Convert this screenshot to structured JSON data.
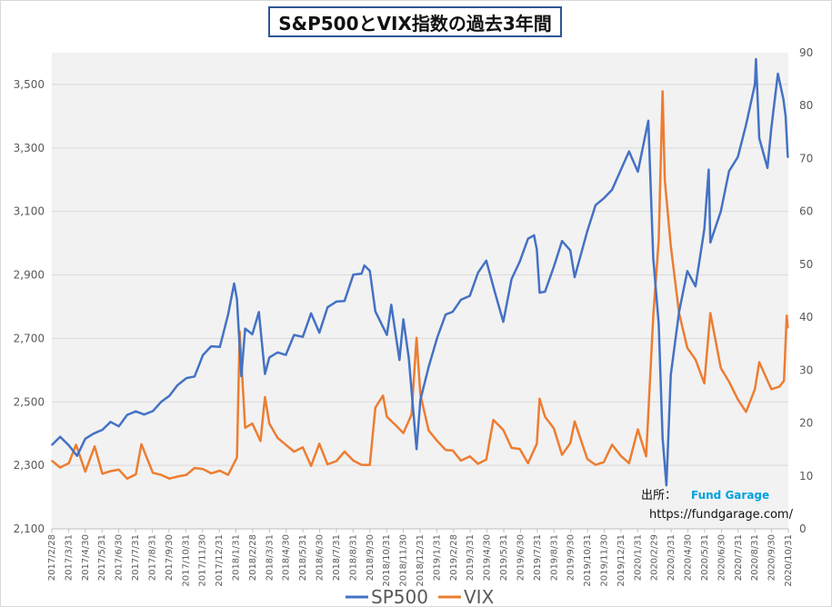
{
  "chart_data": {
    "type": "line",
    "title": "S&P500とVIX指数の過去3年間",
    "x_tick_labels": [
      "2017/2/28",
      "2017/3/31",
      "2017/4/30",
      "2017/5/31",
      "2017/6/30",
      "2017/7/31",
      "2017/8/31",
      "2017/9/30",
      "2017/10/31",
      "2017/11/30",
      "2017/12/31",
      "2018/1/31",
      "2018/2/28",
      "2018/3/31",
      "2018/4/30",
      "2018/5/31",
      "2018/6/30",
      "2018/7/31",
      "2018/8/31",
      "2018/9/30",
      "2018/10/31",
      "2018/11/30",
      "2018/12/31",
      "2019/1/31",
      "2019/2/28",
      "2019/3/31",
      "2019/4/30",
      "2019/5/31",
      "2019/6/30",
      "2019/7/31",
      "2019/8/31",
      "2019/9/30",
      "2019/10/31",
      "2019/11/30",
      "2019/12/31",
      "2020/1/31",
      "2020/2/29",
      "2020/3/31",
      "2020/4/30",
      "2020/5/31",
      "2020/6/30",
      "2020/7/31",
      "2020/8/31",
      "2020/9/30",
      "2020/10/31"
    ],
    "y_left": {
      "ylim": [
        2100,
        3600
      ],
      "ticks": [
        "2,100",
        "2,300",
        "2,500",
        "2,700",
        "2,900",
        "3,100",
        "3,300",
        "3,500"
      ]
    },
    "y_right": {
      "ylim": [
        0,
        90
      ],
      "ticks": [
        "0",
        "10",
        "20",
        "30",
        "40",
        "50",
        "60",
        "70",
        "80",
        "90"
      ]
    },
    "grid": "horizontal",
    "legend": "bottom",
    "series": [
      {
        "name": "SP500",
        "axis": "left",
        "color": "#4472c4",
        "points": [
          [
            "2017-02-28",
            2364
          ],
          [
            "2017-03-15",
            2390
          ],
          [
            "2017-03-31",
            2363
          ],
          [
            "2017-04-15",
            2330
          ],
          [
            "2017-04-30",
            2384
          ],
          [
            "2017-05-15",
            2400
          ],
          [
            "2017-05-31",
            2412
          ],
          [
            "2017-06-15",
            2437
          ],
          [
            "2017-06-30",
            2423
          ],
          [
            "2017-07-15",
            2459
          ],
          [
            "2017-07-31",
            2470
          ],
          [
            "2017-08-15",
            2460
          ],
          [
            "2017-08-31",
            2471
          ],
          [
            "2017-09-15",
            2500
          ],
          [
            "2017-09-30",
            2519
          ],
          [
            "2017-10-15",
            2553
          ],
          [
            "2017-10-31",
            2575
          ],
          [
            "2017-11-15",
            2580
          ],
          [
            "2017-11-30",
            2647
          ],
          [
            "2017-12-15",
            2675
          ],
          [
            "2017-12-31",
            2673
          ],
          [
            "2018-01-15",
            2776
          ],
          [
            "2018-01-26",
            2873
          ],
          [
            "2018-01-31",
            2823
          ],
          [
            "2018-02-08",
            2581
          ],
          [
            "2018-02-15",
            2731
          ],
          [
            "2018-02-28",
            2713
          ],
          [
            "2018-03-12",
            2783
          ],
          [
            "2018-03-23",
            2588
          ],
          [
            "2018-03-31",
            2640
          ],
          [
            "2018-04-15",
            2656
          ],
          [
            "2018-04-30",
            2648
          ],
          [
            "2018-05-15",
            2711
          ],
          [
            "2018-05-31",
            2705
          ],
          [
            "2018-06-15",
            2779
          ],
          [
            "2018-06-30",
            2718
          ],
          [
            "2018-07-15",
            2798
          ],
          [
            "2018-07-31",
            2816
          ],
          [
            "2018-08-15",
            2818
          ],
          [
            "2018-08-31",
            2901
          ],
          [
            "2018-09-15",
            2904
          ],
          [
            "2018-09-20",
            2930
          ],
          [
            "2018-09-30",
            2913
          ],
          [
            "2018-10-10",
            2785
          ],
          [
            "2018-10-31",
            2711
          ],
          [
            "2018-11-08",
            2806
          ],
          [
            "2018-11-23",
            2632
          ],
          [
            "2018-11-30",
            2760
          ],
          [
            "2018-12-10",
            2637
          ],
          [
            "2018-12-24",
            2351
          ],
          [
            "2018-12-31",
            2506
          ],
          [
            "2019-01-15",
            2610
          ],
          [
            "2019-01-31",
            2704
          ],
          [
            "2019-02-15",
            2775
          ],
          [
            "2019-02-28",
            2784
          ],
          [
            "2019-03-15",
            2822
          ],
          [
            "2019-03-31",
            2834
          ],
          [
            "2019-04-15",
            2907
          ],
          [
            "2019-04-30",
            2945
          ],
          [
            "2019-05-15",
            2850
          ],
          [
            "2019-05-31",
            2752
          ],
          [
            "2019-06-15",
            2887
          ],
          [
            "2019-06-30",
            2942
          ],
          [
            "2019-07-15",
            3014
          ],
          [
            "2019-07-26",
            3025
          ],
          [
            "2019-07-31",
            2980
          ],
          [
            "2019-08-05",
            2844
          ],
          [
            "2019-08-15",
            2847
          ],
          [
            "2019-08-31",
            2926
          ],
          [
            "2019-09-15",
            3007
          ],
          [
            "2019-09-30",
            2977
          ],
          [
            "2019-10-08",
            2893
          ],
          [
            "2019-10-31",
            3038
          ],
          [
            "2019-11-15",
            3120
          ],
          [
            "2019-11-30",
            3141
          ],
          [
            "2019-12-15",
            3168
          ],
          [
            "2019-12-31",
            3231
          ],
          [
            "2020-01-15",
            3289
          ],
          [
            "2020-01-31",
            3225
          ],
          [
            "2020-02-19",
            3386
          ],
          [
            "2020-02-28",
            2954
          ],
          [
            "2020-03-09",
            2747
          ],
          [
            "2020-03-16",
            2386
          ],
          [
            "2020-03-23",
            2237
          ],
          [
            "2020-03-31",
            2585
          ],
          [
            "2020-04-15",
            2783
          ],
          [
            "2020-04-30",
            2912
          ],
          [
            "2020-05-15",
            2864
          ],
          [
            "2020-05-31",
            3044
          ],
          [
            "2020-06-08",
            3232
          ],
          [
            "2020-06-11",
            3002
          ],
          [
            "2020-06-30",
            3100
          ],
          [
            "2020-07-15",
            3227
          ],
          [
            "2020-07-31",
            3271
          ],
          [
            "2020-08-15",
            3373
          ],
          [
            "2020-08-31",
            3500
          ],
          [
            "2020-09-02",
            3580
          ],
          [
            "2020-09-08",
            3331
          ],
          [
            "2020-09-23",
            3237
          ],
          [
            "2020-09-30",
            3363
          ],
          [
            "2020-10-12",
            3534
          ],
          [
            "2020-10-22",
            3453
          ],
          [
            "2020-10-26",
            3400
          ],
          [
            "2020-10-30",
            3270
          ]
        ]
      },
      {
        "name": "VIX",
        "axis": "right",
        "color": "#ed7d31",
        "points": [
          [
            "2017-02-28",
            12.9
          ],
          [
            "2017-03-15",
            11.6
          ],
          [
            "2017-03-31",
            12.4
          ],
          [
            "2017-04-13",
            15.9
          ],
          [
            "2017-04-30",
            10.8
          ],
          [
            "2017-05-17",
            15.6
          ],
          [
            "2017-05-31",
            10.4
          ],
          [
            "2017-06-15",
            10.9
          ],
          [
            "2017-06-30",
            11.2
          ],
          [
            "2017-07-15",
            9.5
          ],
          [
            "2017-07-31",
            10.3
          ],
          [
            "2017-08-10",
            16.0
          ],
          [
            "2017-08-31",
            10.6
          ],
          [
            "2017-09-15",
            10.2
          ],
          [
            "2017-09-30",
            9.5
          ],
          [
            "2017-10-15",
            9.9
          ],
          [
            "2017-10-31",
            10.2
          ],
          [
            "2017-11-15",
            11.5
          ],
          [
            "2017-11-30",
            11.3
          ],
          [
            "2017-12-15",
            10.5
          ],
          [
            "2017-12-31",
            11.0
          ],
          [
            "2018-01-15",
            10.2
          ],
          [
            "2018-01-31",
            13.5
          ],
          [
            "2018-02-05",
            37.3
          ],
          [
            "2018-02-15",
            19.1
          ],
          [
            "2018-02-28",
            19.9
          ],
          [
            "2018-03-15",
            16.6
          ],
          [
            "2018-03-23",
            24.9
          ],
          [
            "2018-03-31",
            19.9
          ],
          [
            "2018-04-15",
            17.2
          ],
          [
            "2018-04-30",
            15.9
          ],
          [
            "2018-05-15",
            14.6
          ],
          [
            "2018-05-31",
            15.4
          ],
          [
            "2018-06-15",
            11.9
          ],
          [
            "2018-06-30",
            16.1
          ],
          [
            "2018-07-15",
            12.2
          ],
          [
            "2018-07-31",
            12.8
          ],
          [
            "2018-08-15",
            14.6
          ],
          [
            "2018-08-31",
            12.9
          ],
          [
            "2018-09-15",
            12.1
          ],
          [
            "2018-09-30",
            12.1
          ],
          [
            "2018-10-10",
            22.9
          ],
          [
            "2018-10-24",
            25.2
          ],
          [
            "2018-10-31",
            21.2
          ],
          [
            "2018-11-15",
            19.7
          ],
          [
            "2018-11-30",
            18.1
          ],
          [
            "2018-12-15",
            21.6
          ],
          [
            "2018-12-24",
            36.1
          ],
          [
            "2018-12-31",
            25.4
          ],
          [
            "2019-01-15",
            18.6
          ],
          [
            "2019-01-31",
            16.6
          ],
          [
            "2019-02-15",
            14.9
          ],
          [
            "2019-02-28",
            14.8
          ],
          [
            "2019-03-15",
            12.9
          ],
          [
            "2019-03-31",
            13.7
          ],
          [
            "2019-04-15",
            12.3
          ],
          [
            "2019-04-30",
            13.1
          ],
          [
            "2019-05-13",
            20.6
          ],
          [
            "2019-05-31",
            18.7
          ],
          [
            "2019-06-15",
            15.3
          ],
          [
            "2019-06-30",
            15.1
          ],
          [
            "2019-07-15",
            12.4
          ],
          [
            "2019-07-31",
            16.1
          ],
          [
            "2019-08-05",
            24.6
          ],
          [
            "2019-08-15",
            21.2
          ],
          [
            "2019-08-31",
            19.0
          ],
          [
            "2019-09-15",
            14.0
          ],
          [
            "2019-09-30",
            16.2
          ],
          [
            "2019-10-08",
            20.3
          ],
          [
            "2019-10-31",
            13.2
          ],
          [
            "2019-11-15",
            12.1
          ],
          [
            "2019-11-30",
            12.6
          ],
          [
            "2019-12-15",
            15.9
          ],
          [
            "2019-12-31",
            13.8
          ],
          [
            "2020-01-15",
            12.4
          ],
          [
            "2020-01-31",
            18.8
          ],
          [
            "2020-02-15",
            13.7
          ],
          [
            "2020-02-28",
            40.1
          ],
          [
            "2020-03-09",
            54.5
          ],
          [
            "2020-03-16",
            82.7
          ],
          [
            "2020-03-20",
            66.0
          ],
          [
            "2020-03-31",
            53.5
          ],
          [
            "2020-04-15",
            40.8
          ],
          [
            "2020-04-30",
            34.2
          ],
          [
            "2020-05-15",
            32.0
          ],
          [
            "2020-05-31",
            27.5
          ],
          [
            "2020-06-11",
            40.8
          ],
          [
            "2020-06-30",
            30.4
          ],
          [
            "2020-07-15",
            27.8
          ],
          [
            "2020-07-31",
            24.5
          ],
          [
            "2020-08-15",
            22.1
          ],
          [
            "2020-08-31",
            26.4
          ],
          [
            "2020-09-08",
            31.5
          ],
          [
            "2020-09-30",
            26.4
          ],
          [
            "2020-10-15",
            26.9
          ],
          [
            "2020-10-23",
            28.0
          ],
          [
            "2020-10-28",
            40.3
          ],
          [
            "2020-10-30",
            38.0
          ]
        ]
      }
    ]
  },
  "source": {
    "label": "出所：",
    "brand": "Fund Garage",
    "url": "https://fundgarage.com/"
  }
}
